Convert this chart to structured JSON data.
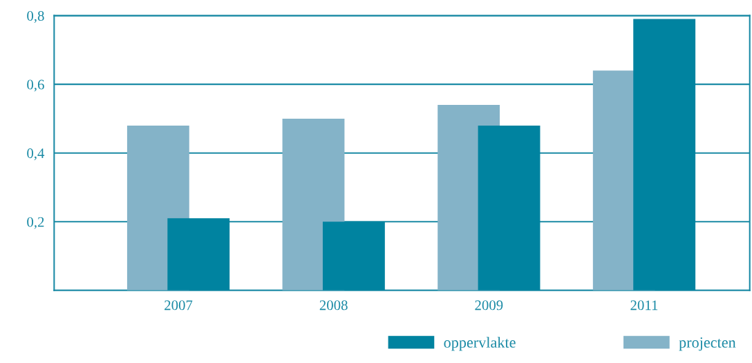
{
  "chart_data": {
    "type": "bar",
    "categories": [
      "2007",
      "2008",
      "2009",
      "2011"
    ],
    "series": [
      {
        "name": "oppervlakte",
        "color": "#0083a0",
        "values": [
          0.21,
          0.2,
          0.48,
          0.79
        ]
      },
      {
        "name": "projecten",
        "color": "#84b3c8",
        "values": [
          0.48,
          0.5,
          0.54,
          0.64
        ]
      }
    ],
    "ylim": [
      0,
      0.8
    ],
    "yticks": [
      {
        "value": 0,
        "label": null
      },
      {
        "value": 0.2,
        "label": "0,2"
      },
      {
        "value": 0.4,
        "label": "0,4"
      },
      {
        "value": 0.6,
        "label": "0,6"
      },
      {
        "value": 0.8,
        "label": "0,8"
      }
    ],
    "grid": "y",
    "legend": "bottom right"
  }
}
